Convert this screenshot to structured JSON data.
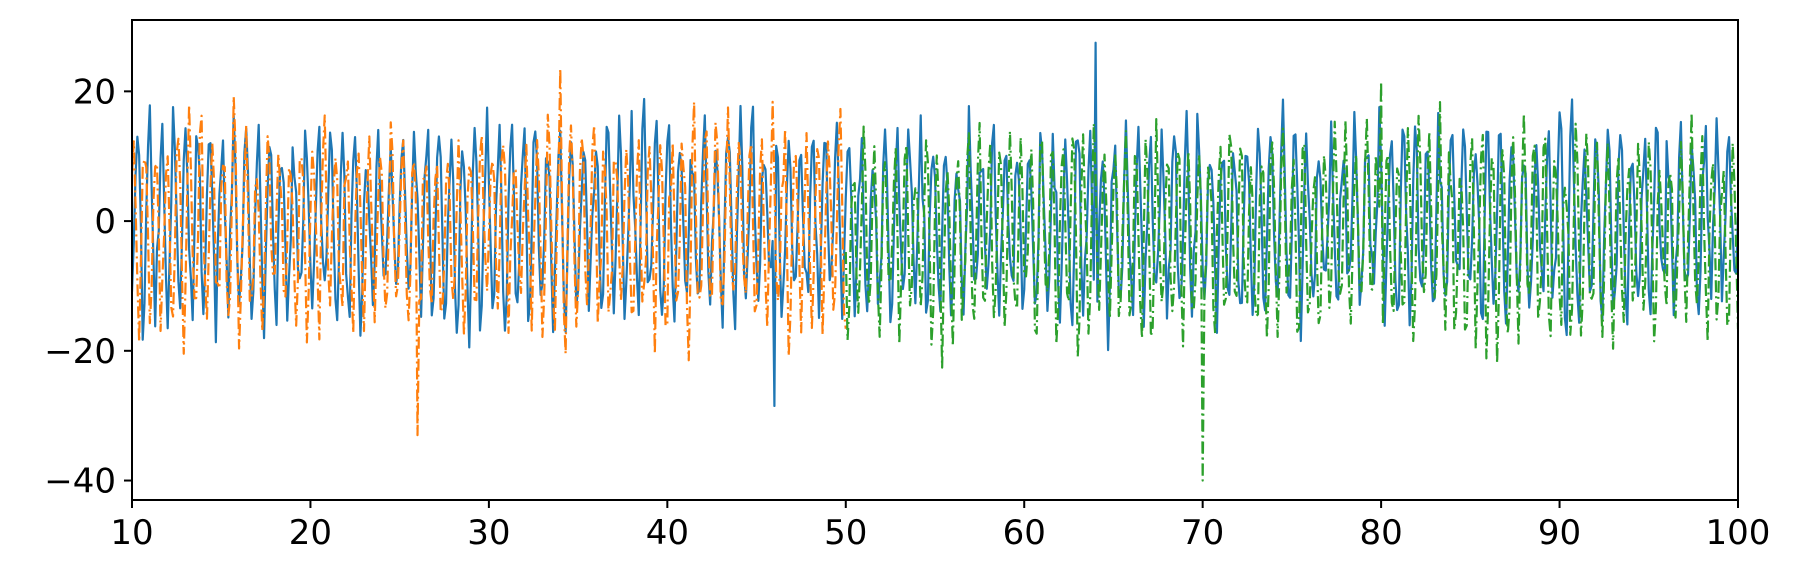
{
  "chart_data": {
    "type": "line",
    "title": "",
    "xlabel": "",
    "ylabel": "",
    "xlim": [
      10,
      100
    ],
    "ylim": [
      -43,
      31
    ],
    "grid": false,
    "legend": "none",
    "x_ticks": [
      10,
      20,
      30,
      40,
      50,
      60,
      70,
      80,
      90,
      100
    ],
    "x_tick_labels": [
      "10",
      "20",
      "30",
      "40",
      "50",
      "60",
      "70",
      "80",
      "90",
      "100"
    ],
    "y_ticks": [
      20,
      0,
      -20,
      -40
    ],
    "y_tick_labels": [
      "20",
      "0",
      "−20",
      "−40"
    ],
    "series": [
      {
        "color": "#1f77b4",
        "linestyle": "solid",
        "x_range": [
          10,
          100
        ],
        "dx": 0.1,
        "mean": 0,
        "amplitude_typical": 15,
        "max": 27.5,
        "min": -28.5
      },
      {
        "color": "#ff7f0e",
        "linestyle": "dashdot",
        "x_range": [
          10,
          50
        ],
        "dx": 0.1,
        "mean": -1,
        "amplitude_typical": 16,
        "max": 23.5,
        "min": -33
      },
      {
        "color": "#2ca02c",
        "linestyle": "dashdot",
        "x_range": [
          50,
          100
        ],
        "dx": 0.1,
        "mean": -2,
        "amplitude_typical": 16,
        "max": 21.5,
        "min": -40
      }
    ]
  }
}
